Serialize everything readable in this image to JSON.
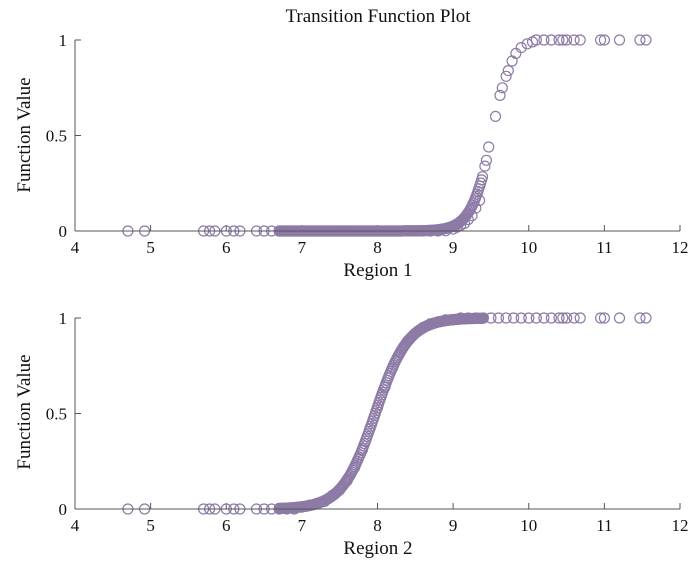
{
  "chart_data": [
    {
      "type": "scatter",
      "title": "Transition Function Plot",
      "xlabel": "Region 1",
      "ylabel": "Function Value",
      "xlim": [
        4,
        12
      ],
      "ylim": [
        0,
        1
      ],
      "xticks": [
        "4",
        "5",
        "6",
        "7",
        "8",
        "9",
        "10",
        "11",
        "12"
      ],
      "yticks": [
        "0",
        "0.5",
        "1"
      ],
      "grid": false,
      "marker": "open-circle",
      "marker_color": "#8d7ba6",
      "transition_center": 9.52,
      "transition_slope": 7.0,
      "points": [
        {
          "x": 4.7,
          "y": 0
        },
        {
          "x": 4.92,
          "y": 0
        },
        {
          "x": 5.7,
          "y": 0
        },
        {
          "x": 5.78,
          "y": 0
        },
        {
          "x": 5.85,
          "y": 0
        },
        {
          "x": 6.0,
          "y": 0
        },
        {
          "x": 6.1,
          "y": 0
        },
        {
          "x": 6.18,
          "y": 0
        },
        {
          "x": 6.4,
          "y": 0
        },
        {
          "x": 6.5,
          "y": 0
        },
        {
          "x": 6.6,
          "y": 0
        },
        {
          "x": 6.7,
          "y": 0
        },
        {
          "x": 6.8,
          "y": 0
        },
        {
          "x": 6.9,
          "y": 0
        },
        {
          "x": 7.0,
          "y": 0
        },
        {
          "x": 7.1,
          "y": 0
        },
        {
          "x": 7.2,
          "y": 0
        },
        {
          "x": 7.3,
          "y": 0
        },
        {
          "x": 7.4,
          "y": 0
        },
        {
          "x": 7.5,
          "y": 0
        },
        {
          "x": 7.6,
          "y": 0
        },
        {
          "x": 7.7,
          "y": 0
        },
        {
          "x": 7.8,
          "y": 0
        },
        {
          "x": 7.9,
          "y": 0
        },
        {
          "x": 8.0,
          "y": 0
        },
        {
          "x": 8.1,
          "y": 0
        },
        {
          "x": 8.2,
          "y": 0
        },
        {
          "x": 8.3,
          "y": 0
        },
        {
          "x": 8.4,
          "y": 0
        },
        {
          "x": 8.5,
          "y": 0
        },
        {
          "x": 8.6,
          "y": 0
        },
        {
          "x": 8.7,
          "y": 0
        },
        {
          "x": 8.8,
          "y": 0
        },
        {
          "x": 8.9,
          "y": 0.001
        },
        {
          "x": 9.0,
          "y": 0.01
        },
        {
          "x": 9.05,
          "y": 0.02
        },
        {
          "x": 9.1,
          "y": 0.03
        },
        {
          "x": 9.15,
          "y": 0.04
        },
        {
          "x": 9.2,
          "y": 0.06
        },
        {
          "x": 9.25,
          "y": 0.08
        },
        {
          "x": 9.3,
          "y": 0.12
        },
        {
          "x": 9.35,
          "y": 0.16
        },
        {
          "x": 9.42,
          "y": 0.34
        },
        {
          "x": 9.44,
          "y": 0.37
        },
        {
          "x": 9.47,
          "y": 0.44
        },
        {
          "x": 9.56,
          "y": 0.6
        },
        {
          "x": 9.62,
          "y": 0.71
        },
        {
          "x": 9.65,
          "y": 0.75
        },
        {
          "x": 9.7,
          "y": 0.81
        },
        {
          "x": 9.73,
          "y": 0.84
        },
        {
          "x": 9.78,
          "y": 0.89
        },
        {
          "x": 9.83,
          "y": 0.93
        },
        {
          "x": 9.9,
          "y": 0.96
        },
        {
          "x": 9.98,
          "y": 0.98
        },
        {
          "x": 10.05,
          "y": 0.99
        },
        {
          "x": 10.1,
          "y": 1
        },
        {
          "x": 10.2,
          "y": 1
        },
        {
          "x": 10.3,
          "y": 1
        },
        {
          "x": 10.4,
          "y": 1
        },
        {
          "x": 10.45,
          "y": 1
        },
        {
          "x": 10.5,
          "y": 1
        },
        {
          "x": 10.6,
          "y": 1
        },
        {
          "x": 10.68,
          "y": 1
        },
        {
          "x": 10.95,
          "y": 1
        },
        {
          "x": 11.0,
          "y": 1
        },
        {
          "x": 11.2,
          "y": 1
        },
        {
          "x": 11.47,
          "y": 1
        },
        {
          "x": 11.55,
          "y": 1
        }
      ]
    },
    {
      "type": "scatter",
      "title": "",
      "xlabel": "Region 2",
      "ylabel": "Function Value",
      "xlim": [
        4,
        12
      ],
      "ylim": [
        0,
        1
      ],
      "xticks": [
        "4",
        "5",
        "6",
        "7",
        "8",
        "9",
        "10",
        "11",
        "12"
      ],
      "yticks": [
        "0",
        "0.5",
        "1"
      ],
      "grid": false,
      "marker": "open-circle",
      "marker_color": "#8d7ba6",
      "transition_center": 7.97,
      "transition_slope": 4.6,
      "points": [
        {
          "x": 4.7,
          "y": 0
        },
        {
          "x": 4.92,
          "y": 0
        },
        {
          "x": 5.7,
          "y": 0
        },
        {
          "x": 5.78,
          "y": 0
        },
        {
          "x": 5.85,
          "y": 0
        },
        {
          "x": 6.0,
          "y": 0
        },
        {
          "x": 6.1,
          "y": 0
        },
        {
          "x": 6.18,
          "y": 0
        },
        {
          "x": 6.4,
          "y": 0
        },
        {
          "x": 6.5,
          "y": 0
        },
        {
          "x": 6.6,
          "y": 0
        },
        {
          "x": 6.7,
          "y": 0
        },
        {
          "x": 6.8,
          "y": 0
        },
        {
          "x": 6.9,
          "y": 0
        },
        {
          "x": 7.0,
          "y": 0.01
        },
        {
          "x": 7.1,
          "y": 0.02
        },
        {
          "x": 7.2,
          "y": 0.03
        },
        {
          "x": 7.3,
          "y": 0.04
        },
        {
          "x": 7.4,
          "y": 0.07
        },
        {
          "x": 7.5,
          "y": 0.1
        },
        {
          "x": 7.6,
          "y": 0.15
        },
        {
          "x": 7.7,
          "y": 0.22
        },
        {
          "x": 7.8,
          "y": 0.31
        },
        {
          "x": 7.9,
          "y": 0.42
        },
        {
          "x": 8.0,
          "y": 0.53
        },
        {
          "x": 8.1,
          "y": 0.64
        },
        {
          "x": 8.2,
          "y": 0.74
        },
        {
          "x": 8.3,
          "y": 0.82
        },
        {
          "x": 8.4,
          "y": 0.88
        },
        {
          "x": 8.5,
          "y": 0.92
        },
        {
          "x": 8.6,
          "y": 0.95
        },
        {
          "x": 8.7,
          "y": 0.97
        },
        {
          "x": 8.8,
          "y": 0.98
        },
        {
          "x": 8.9,
          "y": 0.99
        },
        {
          "x": 9.0,
          "y": 0.99
        },
        {
          "x": 9.1,
          "y": 1
        },
        {
          "x": 9.2,
          "y": 1
        },
        {
          "x": 9.3,
          "y": 1
        },
        {
          "x": 9.4,
          "y": 1
        },
        {
          "x": 9.5,
          "y": 1
        },
        {
          "x": 9.6,
          "y": 1
        },
        {
          "x": 9.7,
          "y": 1
        },
        {
          "x": 9.8,
          "y": 1
        },
        {
          "x": 9.9,
          "y": 1
        },
        {
          "x": 10.0,
          "y": 1
        },
        {
          "x": 10.1,
          "y": 1
        },
        {
          "x": 10.2,
          "y": 1
        },
        {
          "x": 10.3,
          "y": 1
        },
        {
          "x": 10.4,
          "y": 1
        },
        {
          "x": 10.45,
          "y": 1
        },
        {
          "x": 10.5,
          "y": 1
        },
        {
          "x": 10.6,
          "y": 1
        },
        {
          "x": 10.68,
          "y": 1
        },
        {
          "x": 10.95,
          "y": 1
        },
        {
          "x": 11.0,
          "y": 1
        },
        {
          "x": 11.2,
          "y": 1
        },
        {
          "x": 11.47,
          "y": 1
        },
        {
          "x": 11.55,
          "y": 1
        }
      ]
    }
  ]
}
